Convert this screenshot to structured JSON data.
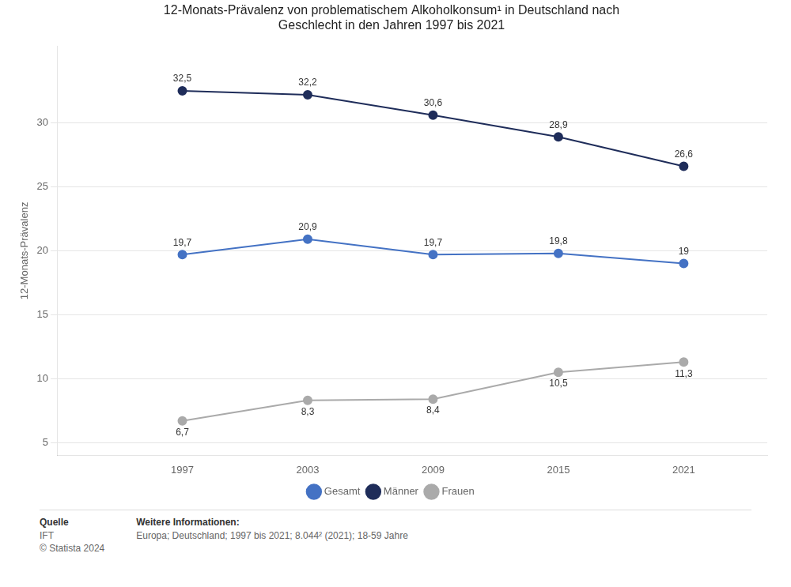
{
  "chart_data": {
    "type": "line",
    "title": [
      "12-Monats-Prävalenz von problematischem Alkoholkonsum¹ in Deutschland nach",
      "Geschlecht in den Jahren 1997 bis 2021"
    ],
    "y_label": "12-Monats-Prävalenz",
    "x": [
      1997,
      2003,
      2009,
      2015,
      2021
    ],
    "series": [
      {
        "name": "Gesamt",
        "color": "#4472C4",
        "marker": "circle",
        "values": [
          19.7,
          20.9,
          19.7,
          19.8,
          19.0
        ],
        "value_labels": [
          "19,7",
          "20,9",
          "19,7",
          "19,8",
          "19"
        ]
      },
      {
        "name": "Männer",
        "color": "#1F2D5A",
        "marker": "circle",
        "values": [
          32.5,
          32.2,
          30.6,
          28.9,
          26.6
        ],
        "value_labels": [
          "32,5",
          "32,2",
          "30,6",
          "28,9",
          "26,6"
        ]
      },
      {
        "name": "Frauen",
        "color": "#AAAAAA",
        "marker": "circle",
        "values": [
          6.7,
          8.3,
          8.4,
          10.5,
          11.3
        ],
        "value_labels": [
          "6,7",
          "8,3",
          "8,4",
          "10,5",
          "11,3"
        ]
      }
    ],
    "xlim": [
      1991,
      2025
    ],
    "xticks": [
      1997,
      2003,
      2009,
      2015,
      2021
    ],
    "ylim": [
      4,
      36
    ],
    "yticks": [
      5,
      10,
      15,
      20,
      25,
      30
    ],
    "grid": "y",
    "legend": "bottom",
    "data_labels": true,
    "annotations": [
      {
        "title": "Quelle",
        "lines": [
          "IFT",
          "© Statista 2024"
        ]
      },
      {
        "title": "Weitere Informationen:",
        "lines": [
          "Europa; Deutschland; 1997 bis 2021; 8.044² (2021); 18-59 Jahre"
        ]
      }
    ]
  }
}
